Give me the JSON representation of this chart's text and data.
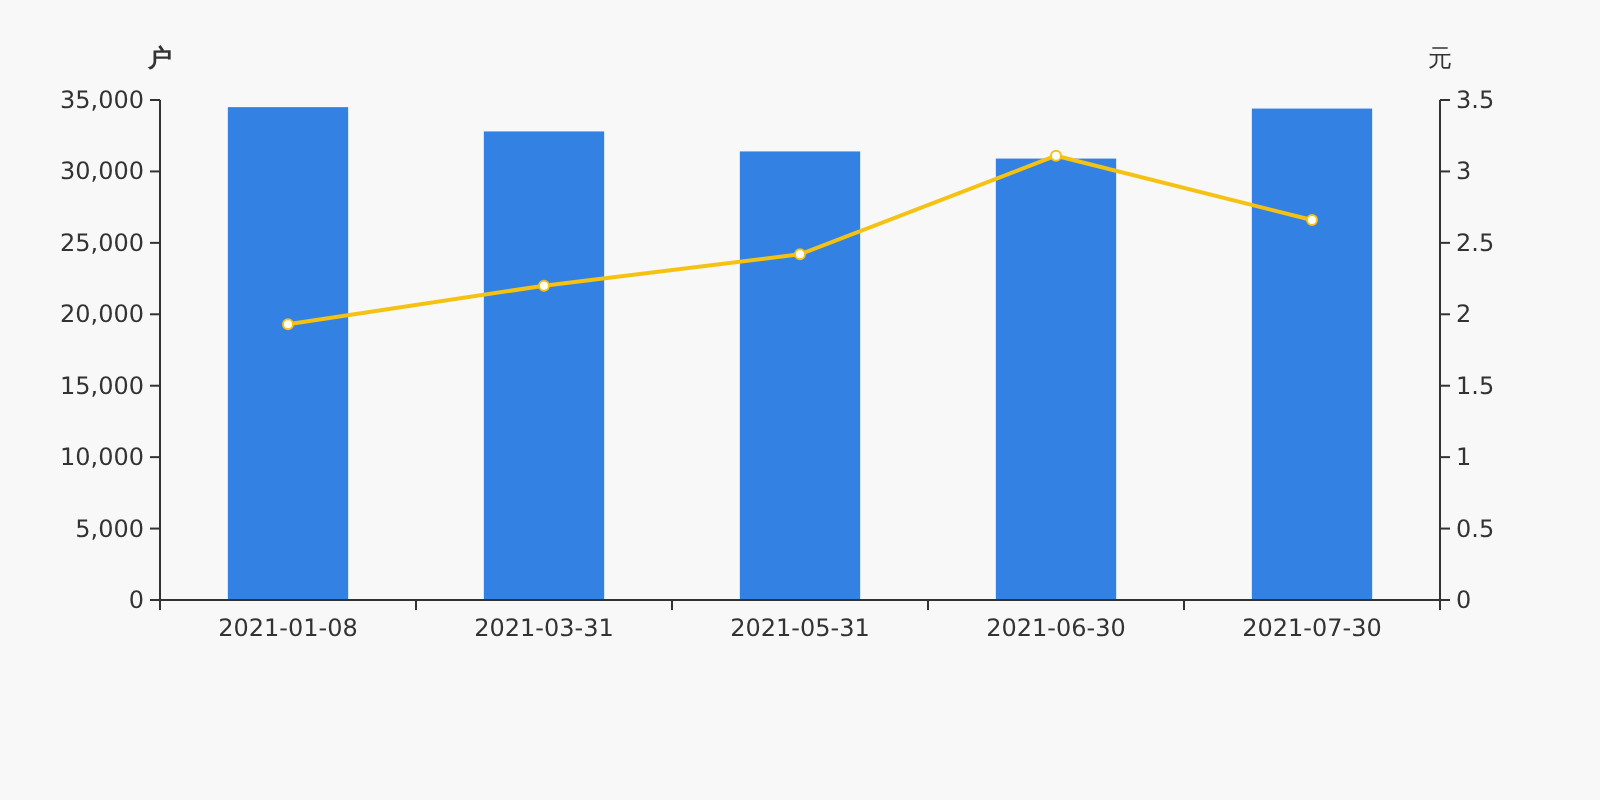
{
  "chart_data": {
    "type": "bar",
    "categories": [
      "2021-01-08",
      "2021-03-31",
      "2021-05-31",
      "2021-06-30",
      "2021-07-30"
    ],
    "ylabel": "户",
    "y2label": "元",
    "ylim": [
      0,
      35000
    ],
    "yticks": [
      {
        "value": 0,
        "label": "0"
      },
      {
        "value": 5000,
        "label": "5,000"
      },
      {
        "value": 10000,
        "label": "10,000"
      },
      {
        "value": 15000,
        "label": "15,000"
      },
      {
        "value": 20000,
        "label": "20,000"
      },
      {
        "value": 25000,
        "label": "25,000"
      },
      {
        "value": 30000,
        "label": "30,000"
      },
      {
        "value": 35000,
        "label": "35,000"
      }
    ],
    "y2lim": [
      0,
      3.5
    ],
    "y2ticks": [
      0,
      0.5,
      1,
      1.5,
      2,
      2.5,
      3,
      3.5
    ],
    "grid": false,
    "marker": "circle",
    "series": [
      {
        "color": "#3381e2",
        "values": [
          34500,
          32800,
          31400,
          30900,
          34400
        ]
      },
      {
        "type": "line",
        "axis": "y2",
        "color": "#f5c211",
        "values": [
          1.93,
          2.2,
          2.42,
          3.11,
          2.66
        ]
      }
    ]
  }
}
